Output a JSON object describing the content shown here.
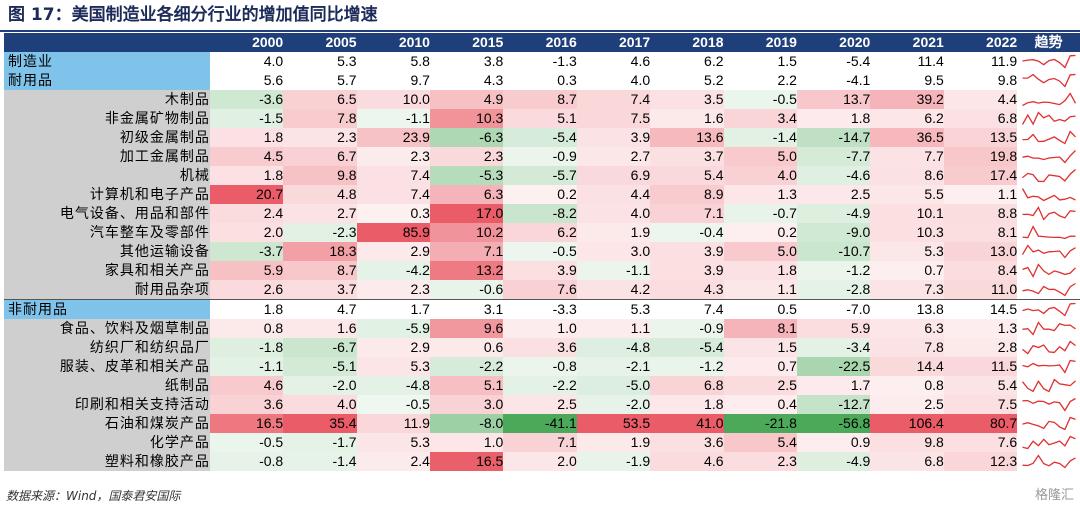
{
  "title": "图 17：美国制造业各细分行业的增加值同比增速",
  "source": "数据来源：Wind，国泰君安国际",
  "watermark": "格隆汇",
  "trend_label": "趋势",
  "colors": {
    "header": "#1f3f7a",
    "highlight": "#7fc2ea",
    "label_bg": "#cfcfcf",
    "positive": "#e8505b",
    "negative": "#3fa34d",
    "spark": "#e03030"
  },
  "chart_data": {
    "type": "table",
    "columns": [
      "2000",
      "2005",
      "2010",
      "2015",
      "2016",
      "2017",
      "2018",
      "2019",
      "2020",
      "2021",
      "2022"
    ],
    "rows": [
      {
        "label": "制造业",
        "kind": "hl",
        "values": [
          4.0,
          5.3,
          5.8,
          3.8,
          -1.3,
          4.6,
          6.2,
          1.5,
          -5.4,
          11.4,
          11.9
        ]
      },
      {
        "label": "耐用品",
        "kind": "hl",
        "values": [
          5.6,
          5.7,
          9.7,
          4.3,
          0.3,
          4.0,
          5.2,
          2.2,
          -4.1,
          9.5,
          9.8
        ]
      },
      {
        "label": "木制品",
        "kind": "sub",
        "values": [
          -3.6,
          6.5,
          10.0,
          4.9,
          8.7,
          7.4,
          3.5,
          -0.5,
          13.7,
          39.2,
          4.4
        ]
      },
      {
        "label": "非金属矿物制品",
        "kind": "sub",
        "values": [
          -1.5,
          7.8,
          -1.1,
          10.3,
          5.1,
          7.5,
          1.6,
          3.4,
          1.8,
          6.2,
          6.8
        ]
      },
      {
        "label": "初级金属制品",
        "kind": "sub",
        "values": [
          1.8,
          2.3,
          23.9,
          -6.3,
          -5.4,
          3.9,
          13.6,
          -1.4,
          -14.7,
          36.5,
          13.5
        ]
      },
      {
        "label": "加工金属制品",
        "kind": "sub",
        "values": [
          4.5,
          6.7,
          2.3,
          2.3,
          -0.9,
          2.7,
          3.7,
          5.0,
          -7.7,
          7.7,
          19.8
        ]
      },
      {
        "label": "机械",
        "kind": "sub",
        "values": [
          1.8,
          9.8,
          7.4,
          -5.3,
          -5.7,
          6.9,
          5.4,
          4.0,
          -4.6,
          8.6,
          17.4
        ]
      },
      {
        "label": "计算机和电子产品",
        "kind": "sub",
        "values": [
          20.7,
          4.8,
          7.4,
          6.3,
          0.2,
          4.4,
          8.9,
          1.3,
          2.5,
          5.5,
          1.1
        ]
      },
      {
        "label": "电气设备、用品和部件",
        "kind": "sub",
        "values": [
          2.4,
          2.7,
          0.3,
          17.0,
          -8.2,
          4.0,
          7.1,
          -0.7,
          -4.9,
          10.1,
          8.8
        ]
      },
      {
        "label": "汽车整车及零部件",
        "kind": "sub",
        "values": [
          2.0,
          -2.3,
          85.9,
          10.2,
          6.2,
          1.9,
          -0.4,
          0.2,
          -9.0,
          10.3,
          8.1
        ]
      },
      {
        "label": "其他运输设备",
        "kind": "sub",
        "values": [
          -3.7,
          18.3,
          2.9,
          7.1,
          -0.5,
          3.0,
          3.9,
          5.0,
          -10.7,
          5.3,
          13.0
        ]
      },
      {
        "label": "家具和相关产品",
        "kind": "sub",
        "values": [
          5.9,
          8.7,
          -4.2,
          13.2,
          3.9,
          -1.1,
          3.9,
          1.8,
          -1.2,
          0.7,
          8.4
        ]
      },
      {
        "label": "耐用品杂项",
        "kind": "sub",
        "values": [
          2.6,
          3.7,
          2.3,
          -0.6,
          7.6,
          4.2,
          4.3,
          1.1,
          -2.8,
          7.3,
          11.0
        ]
      },
      {
        "label": "非耐用品",
        "kind": "hl",
        "section": true,
        "values": [
          1.8,
          4.7,
          1.7,
          3.1,
          -3.3,
          5.3,
          7.4,
          0.5,
          -7.0,
          13.8,
          14.5
        ]
      },
      {
        "label": "食品、饮料及烟草制品",
        "kind": "sub",
        "values": [
          0.8,
          1.6,
          -5.9,
          9.6,
          1.0,
          1.1,
          -0.9,
          8.1,
          5.9,
          6.3,
          1.3
        ]
      },
      {
        "label": "纺织厂和纺织品厂",
        "kind": "sub",
        "values": [
          -1.8,
          -6.7,
          2.9,
          0.6,
          3.6,
          -4.8,
          -5.4,
          1.5,
          -3.4,
          7.8,
          2.8
        ]
      },
      {
        "label": "服装、皮革和相关产品",
        "kind": "sub",
        "values": [
          -1.1,
          -5.1,
          5.3,
          -2.2,
          -0.8,
          -2.1,
          -1.2,
          0.7,
          -22.5,
          14.4,
          11.5
        ]
      },
      {
        "label": "纸制品",
        "kind": "sub",
        "values": [
          4.6,
          -2.0,
          -4.8,
          5.1,
          -2.2,
          -5.0,
          6.8,
          2.5,
          1.7,
          0.8,
          5.4
        ]
      },
      {
        "label": "印刷和相关支持活动",
        "kind": "sub",
        "values": [
          3.6,
          4.0,
          -0.5,
          3.0,
          2.5,
          -2.0,
          1.8,
          0.4,
          -12.7,
          2.5,
          7.5
        ]
      },
      {
        "label": "石油和煤炭产品",
        "kind": "sub",
        "values": [
          16.5,
          35.4,
          11.9,
          -8.0,
          -41.1,
          53.5,
          41.0,
          -21.8,
          -56.8,
          106.4,
          80.7
        ]
      },
      {
        "label": "化学产品",
        "kind": "sub",
        "values": [
          -0.5,
          -1.7,
          5.3,
          1.0,
          7.1,
          1.9,
          3.6,
          5.4,
          0.9,
          9.8,
          7.6
        ]
      },
      {
        "label": "塑料和橡胶产品",
        "kind": "sub",
        "values": [
          -0.8,
          -1.4,
          2.4,
          16.5,
          2.0,
          -1.9,
          4.6,
          2.3,
          -4.9,
          6.8,
          12.3
        ]
      }
    ]
  }
}
